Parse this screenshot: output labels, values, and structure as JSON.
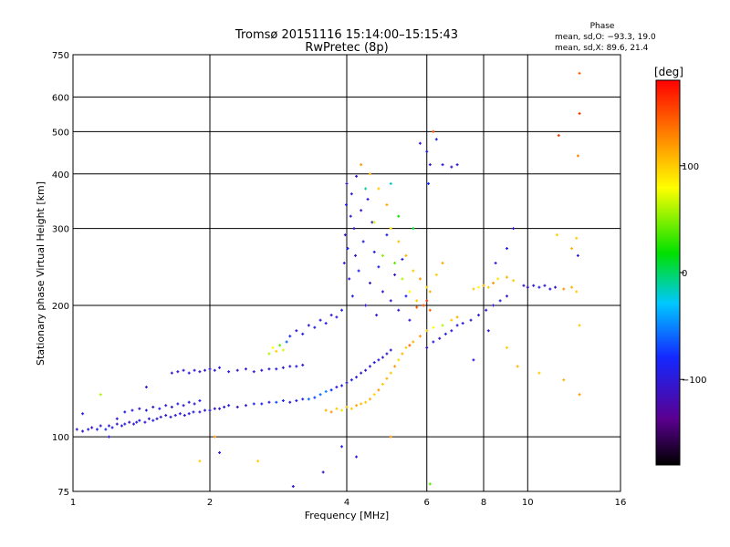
{
  "chart_data": {
    "type": "scatter",
    "title": "Tromsø 20151116 15:14:00–15:15:43",
    "subtitle": "RwPretec (8p)",
    "xlabel": "Frequency [MHz]",
    "ylabel": "Stationary phase Virtual Height [km]",
    "x_scale": "log",
    "y_scale": "log",
    "xlim": [
      1,
      16
    ],
    "ylim": [
      75,
      750
    ],
    "x_ticks": [
      1,
      2,
      4,
      6,
      8,
      10,
      16
    ],
    "y_ticks": [
      75,
      100,
      200,
      300,
      400,
      500,
      600,
      750
    ],
    "grid": true,
    "stats": {
      "heading": "Phase",
      "o_line": "mean, sd,O: −93.3, 19.0",
      "x_line": "mean, sd,X:  89.6, 21.4"
    },
    "colorbar": {
      "unit": "[deg]",
      "min": -180,
      "max": 180,
      "ticks": [
        {
          "value": 100,
          "label": "100"
        },
        {
          "value": 0,
          "label": "0"
        },
        {
          "value": -100,
          "label": "−100"
        }
      ]
    },
    "points": [
      [
        1.02,
        104,
        -100
      ],
      [
        1.05,
        103,
        -105
      ],
      [
        1.08,
        104,
        -95
      ],
      [
        1.1,
        105,
        -110
      ],
      [
        1.13,
        104,
        -90
      ],
      [
        1.15,
        106,
        -100
      ],
      [
        1.18,
        104,
        -75
      ],
      [
        1.2,
        106,
        -100
      ],
      [
        1.22,
        105,
        -95
      ],
      [
        1.25,
        107,
        -105
      ],
      [
        1.28,
        106,
        -100
      ],
      [
        1.3,
        107,
        -95
      ],
      [
        1.33,
        108,
        -110
      ],
      [
        1.36,
        107,
        -100
      ],
      [
        1.38,
        108,
        -100
      ],
      [
        1.4,
        109,
        -95
      ],
      [
        1.44,
        108,
        -105
      ],
      [
        1.47,
        110,
        -100
      ],
      [
        1.5,
        109,
        -85
      ],
      [
        1.53,
        110,
        -100
      ],
      [
        1.56,
        111,
        -95
      ],
      [
        1.6,
        112,
        -110
      ],
      [
        1.64,
        111,
        -100
      ],
      [
        1.68,
        112,
        -100
      ],
      [
        1.72,
        113,
        -95
      ],
      [
        1.76,
        112,
        -105
      ],
      [
        1.8,
        113,
        -100
      ],
      [
        1.84,
        114,
        -90
      ],
      [
        1.9,
        114,
        -100
      ],
      [
        1.95,
        115,
        -100
      ],
      [
        2.0,
        115,
        -95
      ],
      [
        2.05,
        116,
        -105
      ],
      [
        2.1,
        116,
        -100
      ],
      [
        2.15,
        117,
        -100
      ],
      [
        2.2,
        118,
        -95
      ],
      [
        2.3,
        117,
        -110
      ],
      [
        2.4,
        118,
        -100
      ],
      [
        2.5,
        119,
        -80
      ],
      [
        2.6,
        119,
        -90
      ],
      [
        2.7,
        120,
        -100
      ],
      [
        2.8,
        120,
        -70
      ],
      [
        2.9,
        121,
        -80
      ],
      [
        3.0,
        120,
        -100
      ],
      [
        3.1,
        121,
        -90
      ],
      [
        3.2,
        122,
        -80
      ],
      [
        3.3,
        122,
        -60
      ],
      [
        3.4,
        123,
        -70
      ],
      [
        1.3,
        114,
        -95
      ],
      [
        1.35,
        115,
        -100
      ],
      [
        1.4,
        116,
        -105
      ],
      [
        1.45,
        115,
        -95
      ],
      [
        1.5,
        117,
        -100
      ],
      [
        1.55,
        116,
        -90
      ],
      [
        1.6,
        118,
        -100
      ],
      [
        1.65,
        117,
        -100
      ],
      [
        1.7,
        119,
        -95
      ],
      [
        1.75,
        118,
        -105
      ],
      [
        1.8,
        120,
        -100
      ],
      [
        1.85,
        119,
        -100
      ],
      [
        1.9,
        121,
        -95
      ],
      [
        1.15,
        125,
        60
      ],
      [
        1.25,
        110,
        -90
      ],
      [
        1.45,
        130,
        -100
      ],
      [
        1.05,
        113,
        -90
      ],
      [
        1.2,
        100,
        -100
      ],
      [
        2.05,
        100,
        120
      ],
      [
        2.1,
        92,
        -100
      ],
      [
        1.9,
        88,
        100
      ],
      [
        2.55,
        88,
        100
      ],
      [
        3.05,
        77,
        -110
      ],
      [
        3.55,
        83,
        -100
      ],
      [
        3.9,
        95,
        -90
      ],
      [
        1.65,
        140,
        -100
      ],
      [
        1.7,
        141,
        -110
      ],
      [
        1.75,
        142,
        -100
      ],
      [
        1.8,
        140,
        -95
      ],
      [
        1.85,
        142,
        -100
      ],
      [
        1.9,
        141,
        -110
      ],
      [
        1.95,
        142,
        -100
      ],
      [
        2.0,
        143,
        -95
      ],
      [
        2.05,
        142,
        -100
      ],
      [
        2.1,
        144,
        -100
      ],
      [
        2.2,
        141,
        -100
      ],
      [
        2.3,
        142,
        -105
      ],
      [
        2.4,
        143,
        -100
      ],
      [
        2.5,
        141,
        -100
      ],
      [
        2.6,
        142,
        -110
      ],
      [
        2.7,
        143,
        -100
      ],
      [
        2.8,
        143,
        -95
      ],
      [
        2.9,
        144,
        -100
      ],
      [
        3.0,
        145,
        -100
      ],
      [
        3.1,
        145,
        -90
      ],
      [
        3.2,
        146,
        -100
      ],
      [
        2.7,
        155,
        60
      ],
      [
        2.75,
        160,
        80
      ],
      [
        2.8,
        157,
        100
      ],
      [
        2.85,
        162,
        40
      ],
      [
        2.9,
        158,
        70
      ],
      [
        2.95,
        165,
        -60
      ],
      [
        3.0,
        170,
        -80
      ],
      [
        3.1,
        175,
        -100
      ],
      [
        3.2,
        172,
        -90
      ],
      [
        3.3,
        180,
        -100
      ],
      [
        3.4,
        178,
        -95
      ],
      [
        3.5,
        185,
        -100
      ],
      [
        3.6,
        182,
        -90
      ],
      [
        3.7,
        190,
        -100
      ],
      [
        3.8,
        188,
        -100
      ],
      [
        3.9,
        195,
        -95
      ],
      [
        3.5,
        125,
        -60
      ],
      [
        3.6,
        127,
        -50
      ],
      [
        3.7,
        128,
        -80
      ],
      [
        3.8,
        130,
        -100
      ],
      [
        3.9,
        131,
        -90
      ],
      [
        4.0,
        133,
        -100
      ],
      [
        4.1,
        135,
        -95
      ],
      [
        4.2,
        137,
        -100
      ],
      [
        4.3,
        140,
        -100
      ],
      [
        4.4,
        142,
        -110
      ],
      [
        4.5,
        145,
        -100
      ],
      [
        4.6,
        148,
        -90
      ],
      [
        4.7,
        150,
        -100
      ],
      [
        4.8,
        152,
        -95
      ],
      [
        4.9,
        155,
        -100
      ],
      [
        5.0,
        158,
        -100
      ],
      [
        3.6,
        115,
        110
      ],
      [
        3.7,
        114,
        120
      ],
      [
        3.8,
        116,
        100
      ],
      [
        3.9,
        115,
        90
      ],
      [
        4.0,
        117,
        110
      ],
      [
        4.1,
        116,
        100
      ],
      [
        4.2,
        118,
        115
      ],
      [
        4.3,
        119,
        105
      ],
      [
        4.4,
        120,
        100
      ],
      [
        4.5,
        122,
        110
      ],
      [
        4.6,
        125,
        95
      ],
      [
        4.7,
        128,
        120
      ],
      [
        4.8,
        132,
        100
      ],
      [
        4.9,
        136,
        110
      ],
      [
        5.0,
        140,
        100
      ],
      [
        5.1,
        145,
        120
      ],
      [
        5.2,
        150,
        95
      ],
      [
        5.3,
        155,
        110
      ],
      [
        5.4,
        160,
        100
      ],
      [
        5.5,
        162,
        140
      ],
      [
        5.6,
        165,
        110
      ],
      [
        5.8,
        170,
        120
      ],
      [
        6.0,
        175,
        100
      ],
      [
        6.2,
        178,
        80
      ],
      [
        6.5,
        180,
        60
      ],
      [
        6.8,
        185,
        100
      ],
      [
        7.0,
        188,
        110
      ],
      [
        3.95,
        250,
        -100
      ],
      [
        3.97,
        290,
        -110
      ],
      [
        3.99,
        340,
        -90
      ],
      [
        4.0,
        380,
        -100
      ],
      [
        4.02,
        270,
        -80
      ],
      [
        4.05,
        230,
        -100
      ],
      [
        4.08,
        320,
        -95
      ],
      [
        4.1,
        360,
        -100
      ],
      [
        4.12,
        210,
        -90
      ],
      [
        4.15,
        300,
        -100
      ],
      [
        4.18,
        260,
        -110
      ],
      [
        4.2,
        395,
        -100
      ],
      [
        4.25,
        240,
        -90
      ],
      [
        4.3,
        330,
        -100
      ],
      [
        4.35,
        280,
        -95
      ],
      [
        4.4,
        200,
        -100
      ],
      [
        4.45,
        350,
        -100
      ],
      [
        4.5,
        225,
        -110
      ],
      [
        4.55,
        310,
        -100
      ],
      [
        4.6,
        265,
        -90
      ],
      [
        4.65,
        190,
        -100
      ],
      [
        4.7,
        245,
        -95
      ],
      [
        4.8,
        215,
        -100
      ],
      [
        4.9,
        290,
        -90
      ],
      [
        5.0,
        205,
        -100
      ],
      [
        5.1,
        235,
        -100
      ],
      [
        5.2,
        195,
        -110
      ],
      [
        5.3,
        255,
        -100
      ],
      [
        5.4,
        210,
        -90
      ],
      [
        5.5,
        185,
        -100
      ],
      [
        4.3,
        420,
        120
      ],
      [
        4.5,
        400,
        110
      ],
      [
        4.7,
        370,
        100
      ],
      [
        4.9,
        340,
        115
      ],
      [
        5.0,
        300,
        90
      ],
      [
        5.2,
        280,
        105
      ],
      [
        5.4,
        260,
        110
      ],
      [
        5.6,
        240,
        100
      ],
      [
        5.8,
        230,
        120
      ],
      [
        6.0,
        220,
        95
      ],
      [
        4.6,
        310,
        70
      ],
      [
        4.8,
        260,
        50
      ],
      [
        5.1,
        250,
        40
      ],
      [
        5.3,
        230,
        60
      ],
      [
        5.5,
        215,
        80
      ],
      [
        5.7,
        205,
        100
      ],
      [
        5.9,
        200,
        130
      ],
      [
        6.1,
        215,
        110
      ],
      [
        6.3,
        235,
        100
      ],
      [
        6.5,
        250,
        115
      ],
      [
        5.2,
        320,
        20
      ],
      [
        5.6,
        300,
        10
      ],
      [
        5.0,
        380,
        -20
      ],
      [
        4.4,
        370,
        -10
      ],
      [
        5.9,
        200,
        150
      ],
      [
        6.0,
        205,
        160
      ],
      [
        6.1,
        195,
        140
      ],
      [
        5.7,
        198,
        145
      ],
      [
        5.8,
        470,
        -100
      ],
      [
        6.0,
        450,
        -90
      ],
      [
        6.1,
        420,
        -100
      ],
      [
        6.3,
        480,
        -95
      ],
      [
        6.5,
        420,
        -100
      ],
      [
        6.8,
        415,
        -110
      ],
      [
        7.0,
        420,
        -100
      ],
      [
        6.2,
        500,
        150
      ],
      [
        6.05,
        380,
        -80
      ],
      [
        6.0,
        160,
        -100
      ],
      [
        6.2,
        165,
        -95
      ],
      [
        6.4,
        168,
        -100
      ],
      [
        6.6,
        172,
        -90
      ],
      [
        6.8,
        175,
        -100
      ],
      [
        7.0,
        180,
        -100
      ],
      [
        7.2,
        182,
        -95
      ],
      [
        7.5,
        185,
        -100
      ],
      [
        7.8,
        190,
        -100
      ],
      [
        8.1,
        195,
        -110
      ],
      [
        8.4,
        200,
        -100
      ],
      [
        8.7,
        205,
        -90
      ],
      [
        9.0,
        210,
        -100
      ],
      [
        7.6,
        218,
        100
      ],
      [
        7.8,
        220,
        80
      ],
      [
        8.0,
        222,
        110
      ],
      [
        8.2,
        220,
        100
      ],
      [
        8.4,
        225,
        120
      ],
      [
        8.6,
        230,
        90
      ],
      [
        9.0,
        232,
        110
      ],
      [
        9.3,
        228,
        100
      ],
      [
        9.8,
        222,
        -100
      ],
      [
        10.0,
        220,
        -110
      ],
      [
        10.3,
        222,
        -100
      ],
      [
        10.6,
        220,
        -95
      ],
      [
        10.9,
        222,
        -100
      ],
      [
        11.2,
        218,
        -100
      ],
      [
        11.5,
        220,
        -110
      ],
      [
        12.0,
        218,
        120
      ],
      [
        12.5,
        220,
        110
      ],
      [
        12.8,
        215,
        100
      ],
      [
        8.5,
        250,
        -100
      ],
      [
        9.0,
        270,
        -90
      ],
      [
        9.3,
        300,
        -100
      ],
      [
        11.6,
        290,
        100
      ],
      [
        12.9,
        260,
        -100
      ],
      [
        12.9,
        440,
        130
      ],
      [
        13.0,
        550,
        160
      ],
      [
        13.0,
        680,
        140
      ],
      [
        11.7,
        490,
        160
      ],
      [
        12.8,
        285,
        100
      ],
      [
        12.5,
        270,
        110
      ],
      [
        13.0,
        125,
        120
      ],
      [
        12.0,
        135,
        110
      ],
      [
        10.6,
        140,
        100
      ],
      [
        9.5,
        145,
        110
      ],
      [
        9.0,
        160,
        100
      ],
      [
        13.0,
        180,
        100
      ],
      [
        7.6,
        150,
        -100
      ],
      [
        8.2,
        175,
        -100
      ],
      [
        6.1,
        78,
        40
      ],
      [
        5.0,
        100,
        120
      ],
      [
        4.2,
        90,
        -100
      ]
    ]
  }
}
